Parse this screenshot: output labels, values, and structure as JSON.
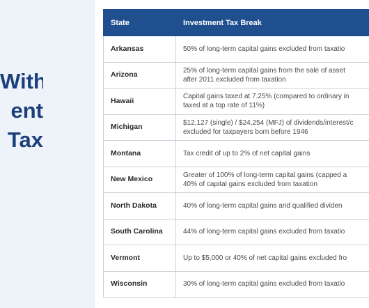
{
  "left_title": {
    "lines": [
      "With",
      "ent",
      "Tax"
    ]
  },
  "table": {
    "headers": [
      "State",
      "Investment Tax Break"
    ],
    "rows": [
      {
        "state": "Arkansas",
        "lines": [
          "50% of long-term capital gains excluded from taxatio"
        ]
      },
      {
        "state": "Arizona",
        "lines": [
          "25% of long-term capital gains from the sale of asset",
          "after 2011 excluded from taxation"
        ]
      },
      {
        "state": "Hawaii",
        "lines": [
          "Capital gains taxed at 7.25% (compared to ordinary in",
          "taxed at a top rate of 11%)"
        ]
      },
      {
        "state": "Michigan",
        "lines": [
          "$12,127 (single) / $24,254 (MFJ) of dividends/interest/c",
          "excluded for taxpayers born before 1946"
        ]
      },
      {
        "state": "Montana",
        "lines": [
          "Tax credit of up to 2% of net capital gains"
        ]
      },
      {
        "state": "New Mexico",
        "lines": [
          "Greater of 100% of long-term capital gains (capped a",
          "40% of capital gains excluded from taxation"
        ]
      },
      {
        "state": "North Dakota",
        "lines": [
          "40% of long-term capital gains and qualified dividen"
        ]
      },
      {
        "state": "South Carolina",
        "lines": [
          "44% of long-term capital gains excluded from taxatio"
        ]
      },
      {
        "state": "Vermont",
        "lines": [
          "Up to $5,000 or 40% of net capital gains excluded fro"
        ]
      },
      {
        "state": "Wisconsin",
        "lines": [
          "30% of long-term capital gains excluded from taxatio"
        ]
      }
    ]
  }
}
